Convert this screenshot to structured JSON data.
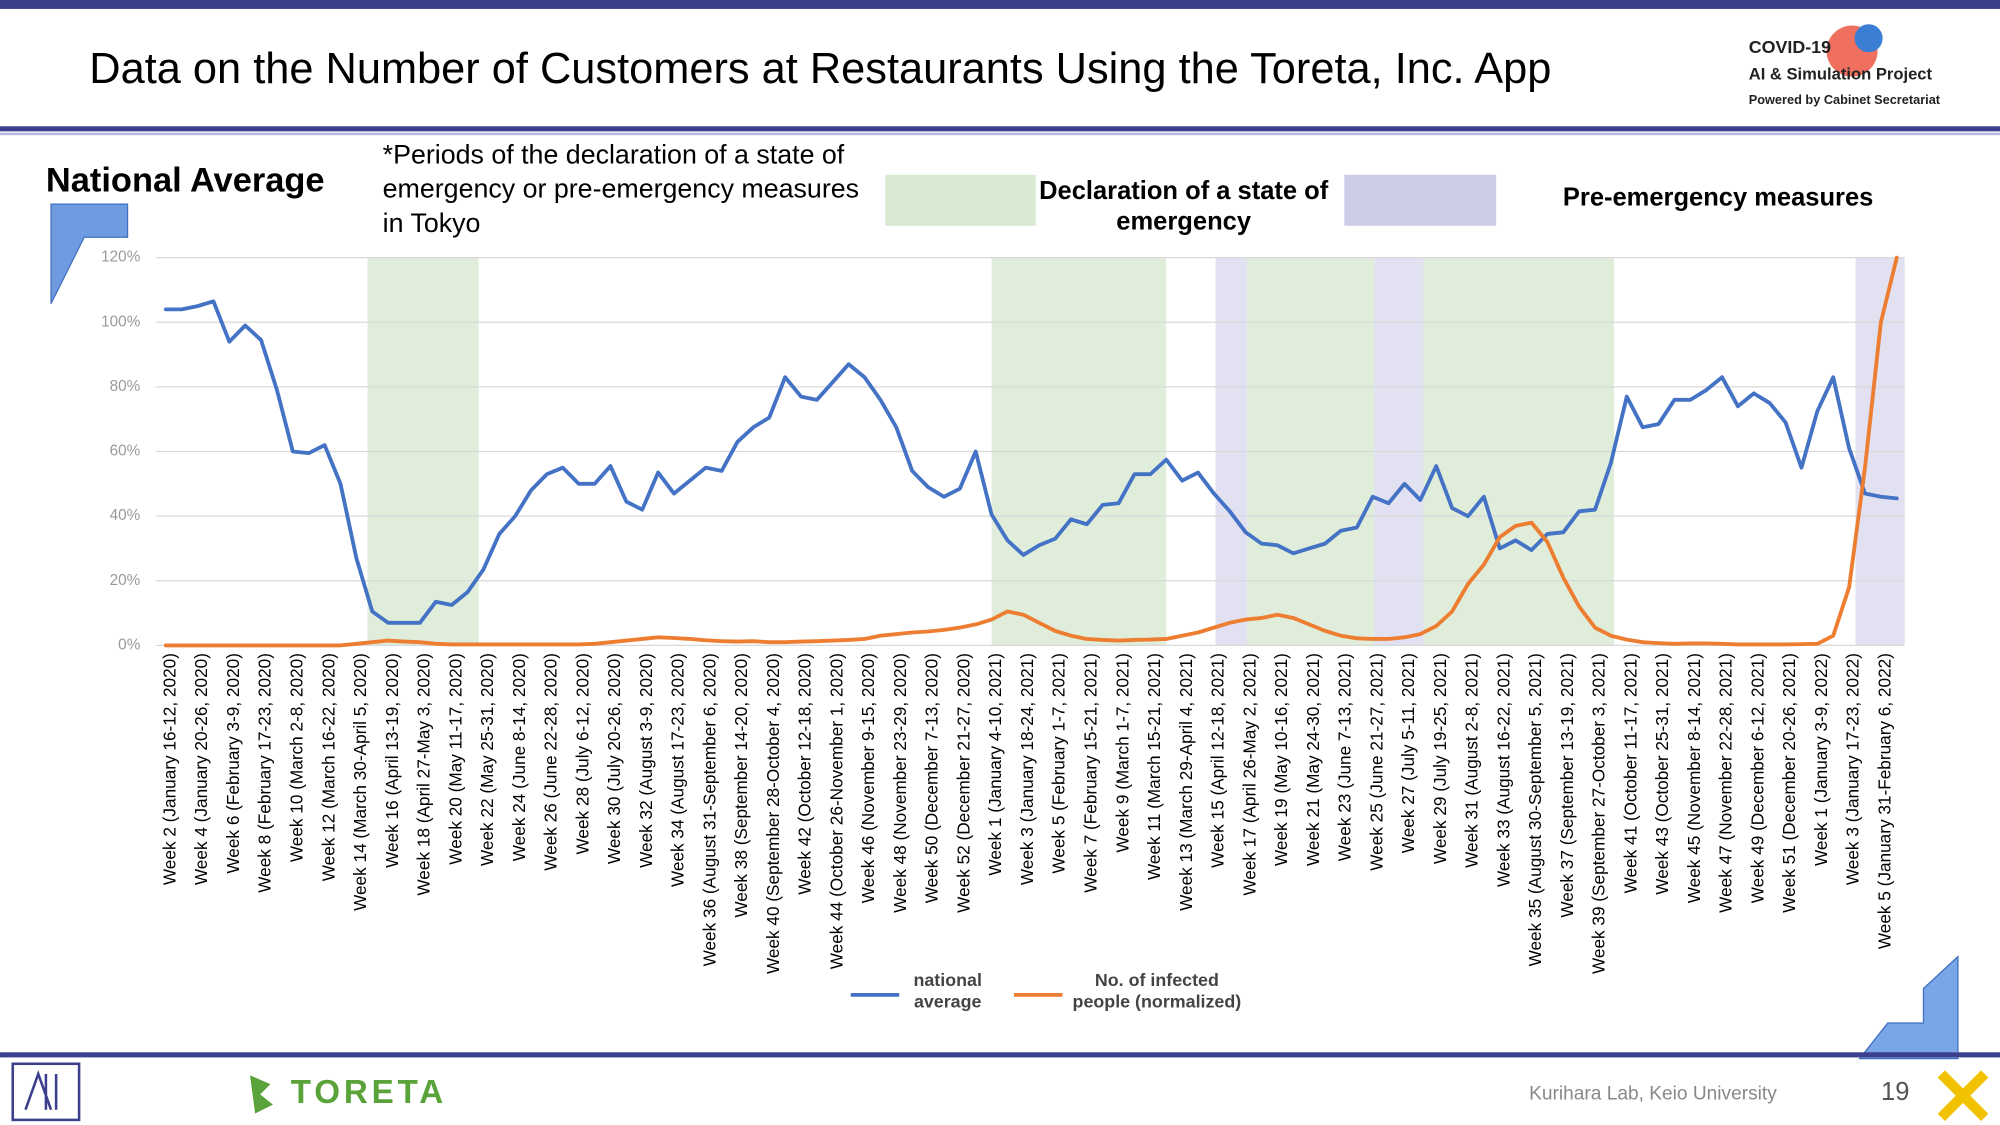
{
  "slide": {
    "title": "Data on the Number of Customers at Restaurants Using the Toreta, Inc. App",
    "logo_title": "COVID-19",
    "logo_subtitle": "AI & Simulation Project",
    "logo_powered": "Powered by Cabinet Secretariat",
    "section": "National Average",
    "note": "*Periods of the declaration of a state of emergency or pre-emergency measures in Tokyo",
    "legend_emergency": "Declaration of a state of emergency",
    "legend_pre": "Pre-emergency measures",
    "brand": "TORETA",
    "credit": "Kurihara Lab, Keio University",
    "page": 19
  },
  "chart_data": {
    "type": "line",
    "categories": [
      "Week 2 (January 16-12, 2020)",
      null,
      "Week 4 (January 20-26, 2020)",
      null,
      "Week 6 (February 3-9, 2020)",
      null,
      "Week 8 (February 17-23, 2020)",
      null,
      "Week 10 (March 2-8, 2020)",
      null,
      "Week 12 (March 16-22, 2020)",
      null,
      "Week 14 (March 30-April 5, 2020)",
      null,
      "Week 16 (April 13-19, 2020)",
      null,
      "Week 18 (April 27-May 3, 2020)",
      null,
      "Week 20 (May 11-17, 2020)",
      null,
      "Week 22 (May 25-31, 2020)",
      null,
      "Week 24 (June 8-14, 2020)",
      null,
      "Week 26 (June 22-28, 2020)",
      null,
      "Week 28 (July 6-12, 2020)",
      null,
      "Week 30 (July 20-26, 2020)",
      null,
      "Week 32 (August 3-9, 2020)",
      null,
      "Week 34 (August 17-23, 2020)",
      null,
      "Week 36 (August 31-September 6, 2020)",
      null,
      "Week 38 (September 14-20, 2020)",
      null,
      "Week 40 (September 28-October 4, 2020)",
      null,
      "Week 42 (October 12-18, 2020)",
      null,
      "Week 44 (October 26-November 1, 2020)",
      null,
      "Week 46 (November 9-15, 2020)",
      null,
      "Week 48 (November 23-29, 2020)",
      null,
      "Week 50 (December 7-13, 2020)",
      null,
      "Week 52 (December 21-27, 2020)",
      null,
      "Week 1 (January 4-10, 2021)",
      null,
      "Week 3 (January 18-24, 2021)",
      null,
      "Week 5 (February 1-7, 2021)",
      null,
      "Week 7 (February 15-21, 2021)",
      null,
      "Week 9 (March 1-7, 2021)",
      null,
      "Week 11 (March 15-21, 2021)",
      null,
      "Week 13 (March 29-April 4, 2021)",
      null,
      "Week 15 (April 12-18, 2021)",
      null,
      "Week 17 (April 26-May 2, 2021)",
      null,
      "Week 19 (May 10-16, 2021)",
      null,
      "Week 21 (May 24-30, 2021)",
      null,
      "Week 23 (June 7-13, 2021)",
      null,
      "Week 25 (June 21-27, 2021)",
      null,
      "Week 27 (July 5-11, 2021)",
      null,
      "Week 29 (July 19-25, 2021)",
      null,
      "Week 31 (August 2-8, 2021)",
      null,
      "Week 33 (August 16-22, 2021)",
      null,
      "Week 35 (August 30-September 5, 2021)",
      null,
      "Week 37 (September 13-19, 2021)",
      null,
      "Week 39 (September 27-October 3, 2021)",
      null,
      "Week 41 (October 11-17, 2021)",
      null,
      "Week 43 (October 25-31, 2021)",
      null,
      "Week 45 (November 8-14, 2021)",
      null,
      "Week 47 (November 22-28, 2021)",
      null,
      "Week 49 (December 6-12, 2021)",
      null,
      "Week 51 (December 20-26, 2021)",
      null,
      "Week 1 (January 3-9, 2022)",
      null,
      "Week 3 (January 17-23, 2022)",
      null,
      "Week 5 (January 31-February 6, 2022)",
      null
    ],
    "series": [
      {
        "name": "national average",
        "color": "#4472c4",
        "values": [
          104,
          104,
          105,
          106.5,
          94,
          99,
          94.5,
          79,
          60,
          59.5,
          62,
          50,
          27,
          10.5,
          7,
          7,
          7,
          13.5,
          12.5,
          16.5,
          23.5,
          34.5,
          40,
          48,
          53,
          55,
          50,
          50,
          55.5,
          44.5,
          42,
          53.5,
          47,
          51,
          55,
          54,
          63,
          67.5,
          70.5,
          83,
          77,
          76,
          81.5,
          87,
          83,
          76,
          67.5,
          54,
          49,
          46,
          48.5,
          60,
          40.5,
          32.5,
          28,
          31,
          33,
          39,
          37.5,
          43.5,
          44,
          53,
          53,
          57.5,
          51,
          53.5,
          47,
          41.5,
          35,
          31.5,
          31,
          28.5,
          30,
          31.5,
          35.5,
          36.5,
          46,
          44,
          50,
          45,
          55.5,
          42.5,
          40,
          46,
          30,
          32.5,
          29.5,
          34.5,
          35,
          41.5,
          42,
          56.5,
          77,
          67.5,
          68.5,
          76,
          76,
          79,
          83,
          74,
          78,
          75,
          69,
          55,
          72.5,
          83,
          61,
          47,
          46,
          45.5
        ]
      },
      {
        "name": "No. of infected people (normalized)",
        "color": "#ed7d31",
        "values": [
          0,
          0,
          0,
          0,
          0,
          0,
          0,
          0,
          0,
          0,
          0,
          0,
          0.5,
          1,
          1.5,
          1.2,
          1,
          0.5,
          0.3,
          0.3,
          0.3,
          0.3,
          0.3,
          0.3,
          0.3,
          0.3,
          0.3,
          0.5,
          1,
          1.5,
          2,
          2.5,
          2.3,
          2,
          1.6,
          1.3,
          1.2,
          1.3,
          1,
          1,
          1.2,
          1.3,
          1.5,
          1.7,
          2,
          3,
          3.5,
          4,
          4.3,
          4.8,
          5.5,
          6.5,
          8,
          10.5,
          9.5,
          7,
          4.5,
          3,
          2,
          1.7,
          1.5,
          1.7,
          1.8,
          2,
          3,
          4,
          5.5,
          7,
          8,
          8.5,
          9.5,
          8.5,
          6.5,
          4.5,
          3,
          2.2,
          2,
          2,
          2.5,
          3.5,
          6,
          10.5,
          19,
          25,
          33.5,
          37,
          38,
          32,
          21,
          12,
          5.5,
          3,
          1.8,
          1,
          0.7,
          0.5,
          0.6,
          0.6,
          0.5,
          0.3,
          0.3,
          0.3,
          0.3,
          0.4,
          0.5,
          3,
          18,
          55,
          100,
          120
        ]
      }
    ],
    "ylim": [
      0,
      120
    ],
    "yticks": [
      {
        "value": 0,
        "label": "0%"
      },
      {
        "value": 20,
        "label": "20%"
      },
      {
        "value": 40,
        "label": "40%"
      },
      {
        "value": 60,
        "label": "60%"
      },
      {
        "value": 80,
        "label": "80%"
      },
      {
        "value": 100,
        "label": "100%"
      },
      {
        "value": 120,
        "label": "120%"
      }
    ],
    "grid": true,
    "legend": "bottom"
  }
}
